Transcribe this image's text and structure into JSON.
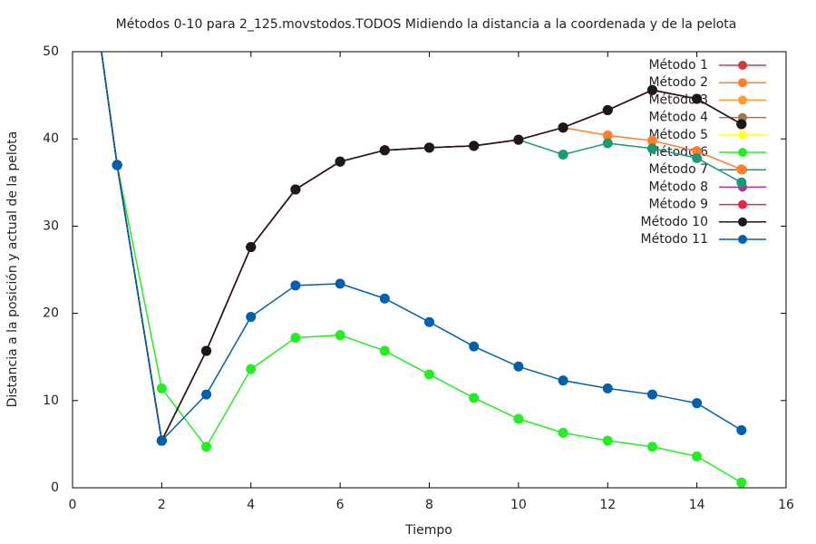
{
  "chart_data": {
    "type": "line",
    "title": "Métodos 0-10 para 2_125.movstodos.TODOS Midiendo la distancia a la coordenada y de la pelota",
    "x_label": "Tiempo",
    "y_label": "Distancia a la posición y actual de la pelota",
    "x": [
      0,
      1,
      2,
      3,
      4,
      5,
      6,
      7,
      8,
      9,
      10,
      11,
      12,
      13,
      14,
      15
    ],
    "xlim": [
      0,
      16
    ],
    "xticks": [
      0,
      2,
      4,
      6,
      8,
      10,
      12,
      14,
      16
    ],
    "ylim": [
      0,
      50
    ],
    "yticks": [
      0,
      10,
      20,
      30,
      40,
      50
    ],
    "legend": "top right",
    "series": [
      {
        "name": "Método 1",
        "color": "#cc3d3d",
        "values": [
          74,
          37,
          5.4,
          15.7,
          27.6,
          34.2,
          37.4,
          38.7,
          39.0,
          39.2,
          39.9,
          41.3,
          43.3,
          45.6,
          44.6,
          41.7
        ]
      },
      {
        "name": "Método 2",
        "color": "#ff7f2a",
        "values": [
          74,
          37,
          5.4,
          15.7,
          27.6,
          34.2,
          37.4,
          38.7,
          39.0,
          39.2,
          39.9,
          41.3,
          40.4,
          39.8,
          38.6,
          36.5
        ]
      },
      {
        "name": "Método 3",
        "color": "#ff9933",
        "values": [
          74,
          37,
          5.4,
          15.7,
          27.6,
          34.2,
          37.4,
          38.7,
          39.0,
          39.2,
          39.9,
          41.3,
          43.3,
          45.6,
          44.6,
          41.7
        ]
      },
      {
        "name": "Método 4",
        "color": "#9c7a50",
        "values": [
          74,
          37,
          5.4,
          15.7,
          27.6,
          34.2,
          37.4,
          38.7,
          39.0,
          39.2,
          39.9,
          41.3,
          43.3,
          45.6,
          44.6,
          41.7
        ]
      },
      {
        "name": "Método 5",
        "color": "#ffff33",
        "values": [
          74,
          37,
          5.4,
          15.7,
          27.6,
          34.2,
          37.4,
          38.7,
          39.0,
          39.2,
          39.9,
          41.3,
          43.3,
          45.6,
          44.6,
          41.7
        ]
      },
      {
        "name": "Método 6",
        "color": "#22ee22",
        "values": [
          74,
          37,
          11.4,
          4.7,
          13.6,
          17.2,
          17.5,
          15.7,
          13.0,
          10.3,
          7.9,
          6.3,
          5.4,
          4.7,
          3.6,
          0.6
        ]
      },
      {
        "name": "Método 7",
        "color": "#1a9977",
        "values": [
          74,
          37,
          5.4,
          15.7,
          27.6,
          34.2,
          37.4,
          38.7,
          39.0,
          39.2,
          39.9,
          38.2,
          39.5,
          38.9,
          37.8,
          35.0
        ]
      },
      {
        "name": "Método 8",
        "color": "#b03090",
        "values": [
          74,
          37,
          5.4,
          15.7,
          27.6,
          34.2,
          37.4,
          38.7,
          39.0,
          39.2,
          39.9,
          41.3,
          43.3,
          45.6,
          44.6,
          41.7
        ]
      },
      {
        "name": "Método 9",
        "color": "#ee2244",
        "values": [
          74,
          37,
          5.4,
          15.7,
          27.6,
          34.2,
          37.4,
          38.7,
          39.0,
          39.2,
          39.9,
          41.3,
          43.3,
          45.6,
          44.6,
          41.7
        ]
      },
      {
        "name": "Método 10",
        "color": "#1a1a1a",
        "values": [
          74,
          37,
          5.4,
          15.7,
          27.6,
          34.2,
          37.4,
          38.7,
          39.0,
          39.2,
          39.9,
          41.3,
          43.3,
          45.6,
          44.6,
          41.7
        ]
      },
      {
        "name": "Método 11",
        "color": "#0060ad",
        "values": [
          74,
          37,
          5.4,
          10.7,
          19.6,
          23.2,
          23.4,
          21.7,
          19.0,
          16.2,
          13.9,
          12.3,
          11.4,
          10.7,
          9.7,
          6.6
        ]
      }
    ]
  }
}
